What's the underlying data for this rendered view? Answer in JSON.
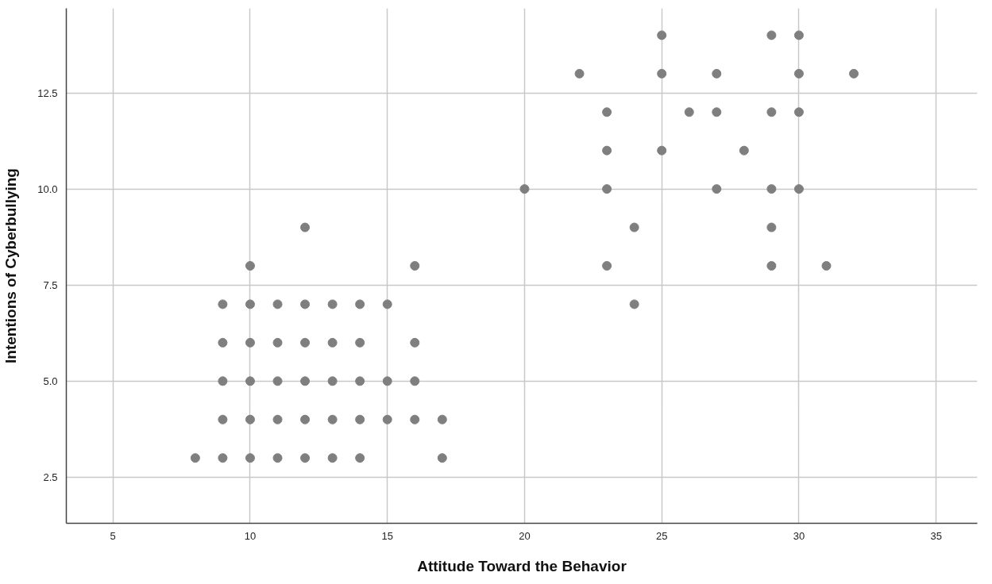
{
  "chart_data": {
    "type": "scatter",
    "xlabel": "Attitude Toward the Behavior",
    "ylabel": "Intentions of Cyberbullying",
    "x": [
      8,
      9,
      10,
      11,
      12,
      13,
      14,
      17,
      9,
      10,
      11,
      12,
      13,
      14,
      15,
      16,
      17,
      9,
      10,
      11,
      12,
      13,
      14,
      15,
      16,
      9,
      10,
      11,
      12,
      13,
      14,
      16,
      9,
      10,
      11,
      12,
      13,
      14,
      15,
      10,
      16,
      12,
      24,
      23,
      29,
      31,
      24,
      29,
      20,
      23,
      27,
      29,
      30,
      23,
      25,
      28,
      23,
      26,
      27,
      29,
      30,
      22,
      25,
      27,
      30,
      32,
      25,
      29,
      30
    ],
    "series": [
      {
        "color": "#7f7f7f",
        "values": [
          3,
          3,
          3,
          3,
          3,
          3,
          3,
          3,
          4,
          4,
          4,
          4,
          4,
          4,
          4,
          4,
          4,
          5,
          5,
          5,
          5,
          5,
          5,
          5,
          5,
          6,
          6,
          6,
          6,
          6,
          6,
          6,
          7,
          7,
          7,
          7,
          7,
          7,
          7,
          8,
          8,
          9,
          7,
          8,
          8,
          8,
          9,
          9,
          10,
          10,
          10,
          10,
          10,
          11,
          11,
          11,
          12,
          12,
          12,
          12,
          12,
          13,
          13,
          13,
          13,
          13,
          14,
          14,
          14
        ]
      }
    ],
    "xlim": [
      3.3,
      36.5
    ],
    "ylim": [
      1.3,
      14.7
    ],
    "xticks": [
      5,
      10,
      15,
      20,
      25,
      30,
      35
    ],
    "yticks": [
      {
        "value": 2.5,
        "label": "2.5"
      },
      {
        "value": 5,
        "label": "5.0"
      },
      {
        "value": 7.5,
        "label": "7.5"
      },
      {
        "value": 10,
        "label": "10.0"
      },
      {
        "value": 12.5,
        "label": "12.5"
      }
    ],
    "grid": true,
    "marker": "circle"
  }
}
